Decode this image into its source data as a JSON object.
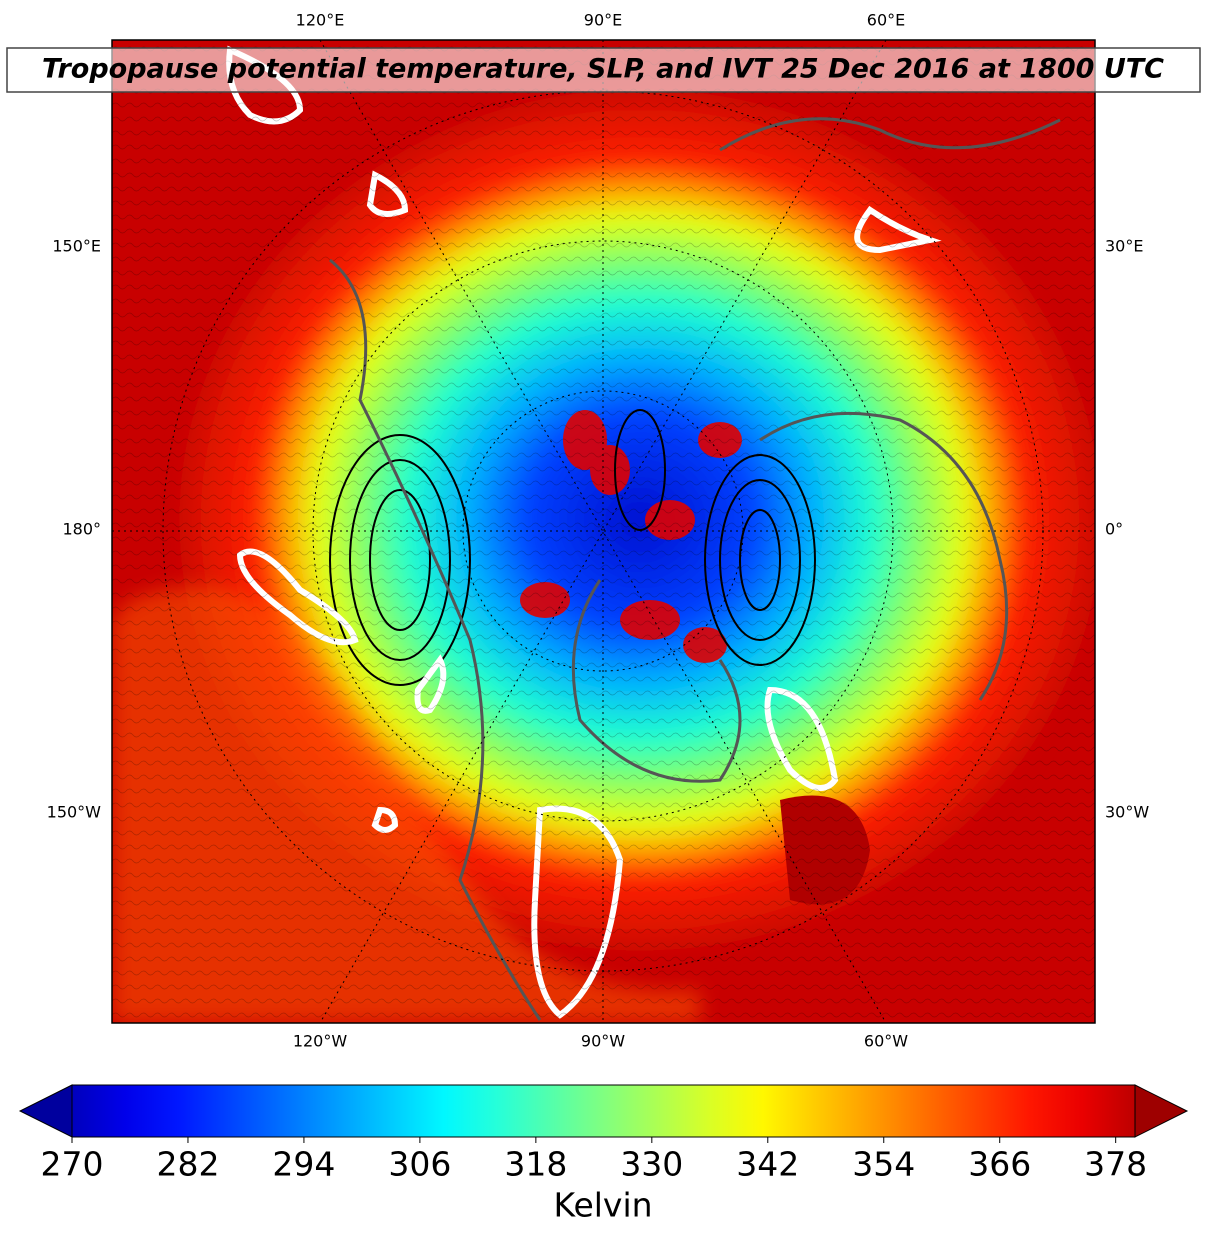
{
  "title": "Tropopause potential temperature, SLP, and IVT 25 Dec 2016 at 1800 UTC",
  "map": {
    "top_labels": [
      "120°E",
      "90°E",
      "60°E"
    ],
    "bottom_labels": [
      "120°W",
      "90°W",
      "60°W"
    ],
    "left_labels": [
      "150°E",
      "180°",
      "150°W"
    ],
    "right_labels": [
      "30°E",
      "0°",
      "30°W"
    ]
  },
  "colorbar": {
    "vlim": [
      270,
      380
    ],
    "ticks": [
      270,
      282,
      294,
      306,
      318,
      330,
      342,
      354,
      366,
      378
    ],
    "label": "Kelvin"
  }
}
